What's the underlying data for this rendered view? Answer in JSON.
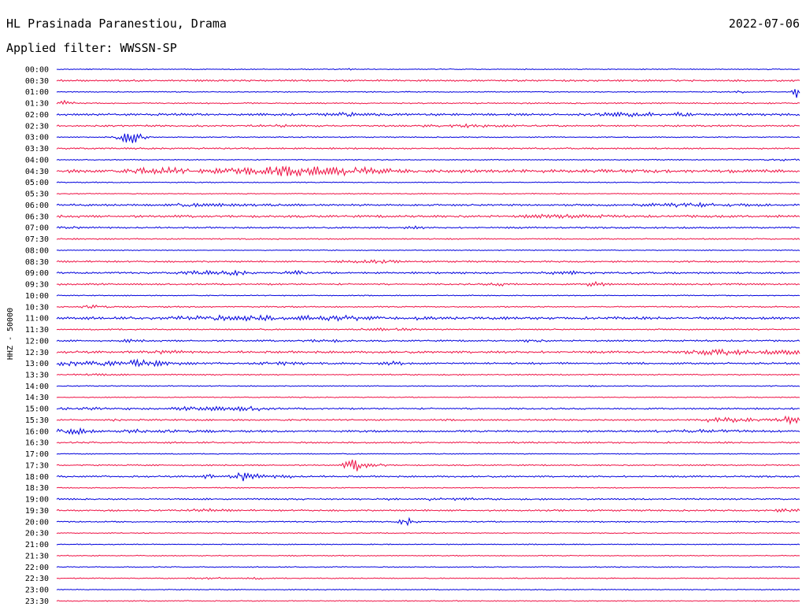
{
  "header": {
    "station": "HL Prasinada Paranestiou, Drama",
    "date": "2022-07-06",
    "filter": "Applied filter: WWSSN-SP"
  },
  "chart_data": {
    "type": "line",
    "title": "HL Prasinada Paranestiou, Drama",
    "subtitle": "Applied filter: WWSSN-SP",
    "date": "2022-07-06",
    "ylabel": "HHZ - 50000",
    "colors": {
      "even_trace": "#0000dd",
      "odd_trace": "#ee1144"
    },
    "traces": [
      {
        "label": "00:00",
        "base": 0.3,
        "events": [
          {
            "t": 0.395,
            "a": 0.4,
            "w": 0.002
          }
        ]
      },
      {
        "label": "00:30",
        "base": 0.55,
        "events": []
      },
      {
        "label": "01:00",
        "base": 0.3,
        "events": [
          {
            "t": 0.92,
            "a": 0.8,
            "w": 0.004
          },
          {
            "t": 0.995,
            "a": 3.5,
            "w": 0.005
          }
        ]
      },
      {
        "label": "01:30",
        "base": 0.4,
        "events": [
          {
            "t": 0.005,
            "a": 1.0,
            "w": 0.012
          }
        ]
      },
      {
        "label": "02:00",
        "base": 0.7,
        "events": [
          {
            "t": 0.39,
            "a": 0.6,
            "w": 0.02
          },
          {
            "t": 0.77,
            "a": 0.8,
            "w": 0.03
          },
          {
            "t": 0.84,
            "a": 0.6,
            "w": 0.01
          }
        ]
      },
      {
        "label": "02:30",
        "base": 0.5,
        "events": [
          {
            "t": 0.29,
            "a": 0.6,
            "w": 0.02
          },
          {
            "t": 0.55,
            "a": 0.5,
            "w": 0.04
          }
        ]
      },
      {
        "label": "03:00",
        "base": 0.3,
        "events": [
          {
            "t": 0.095,
            "a": 3.2,
            "w": 0.015
          }
        ]
      },
      {
        "label": "03:30",
        "base": 0.5,
        "events": []
      },
      {
        "label": "04:00",
        "base": 0.3,
        "events": [
          {
            "t": 0.98,
            "a": 0.4,
            "w": 0.02
          }
        ]
      },
      {
        "label": "04:30",
        "base": 1.0,
        "events": [
          {
            "t": 0.14,
            "a": 1.3,
            "w": 0.03
          },
          {
            "t": 0.24,
            "a": 1.3,
            "w": 0.02
          },
          {
            "t": 0.32,
            "a": 2.0,
            "w": 0.045
          },
          {
            "t": 0.4,
            "a": 1.2,
            "w": 0.03
          }
        ]
      },
      {
        "label": "05:00",
        "base": 0.3,
        "events": []
      },
      {
        "label": "05:30",
        "base": 0.3,
        "events": []
      },
      {
        "label": "06:00",
        "base": 0.6,
        "events": [
          {
            "t": 0.2,
            "a": 0.5,
            "w": 0.05
          },
          {
            "t": 0.85,
            "a": 0.6,
            "w": 0.05
          }
        ]
      },
      {
        "label": "06:30",
        "base": 0.7,
        "events": [
          {
            "t": 0.68,
            "a": 0.6,
            "w": 0.04
          }
        ]
      },
      {
        "label": "07:00",
        "base": 0.5,
        "events": [
          {
            "t": 0.015,
            "a": 0.5,
            "w": 0.01
          },
          {
            "t": 0.48,
            "a": 0.5,
            "w": 0.01
          }
        ]
      },
      {
        "label": "07:30",
        "base": 0.4,
        "events": []
      },
      {
        "label": "08:00",
        "base": 0.3,
        "events": []
      },
      {
        "label": "08:30",
        "base": 0.5,
        "events": [
          {
            "t": 0.42,
            "a": 0.6,
            "w": 0.03
          }
        ]
      },
      {
        "label": "09:00",
        "base": 0.6,
        "events": [
          {
            "t": 0.19,
            "a": 0.8,
            "w": 0.02
          },
          {
            "t": 0.24,
            "a": 1.0,
            "w": 0.012
          },
          {
            "t": 0.32,
            "a": 1.1,
            "w": 0.008
          },
          {
            "t": 0.68,
            "a": 0.6,
            "w": 0.02
          }
        ]
      },
      {
        "label": "09:30",
        "base": 0.5,
        "events": [
          {
            "t": 0.595,
            "a": 0.6,
            "w": 0.015
          },
          {
            "t": 0.725,
            "a": 1.3,
            "w": 0.01
          }
        ]
      },
      {
        "label": "10:00",
        "base": 0.3,
        "events": []
      },
      {
        "label": "10:30",
        "base": 0.4,
        "events": [
          {
            "t": 0.05,
            "a": 1.1,
            "w": 0.012
          }
        ]
      },
      {
        "label": "11:00",
        "base": 0.8,
        "events": [
          {
            "t": 0.2,
            "a": 1.0,
            "w": 0.03
          },
          {
            "t": 0.27,
            "a": 1.2,
            "w": 0.02
          },
          {
            "t": 0.33,
            "a": 1.8,
            "w": 0.006
          },
          {
            "t": 0.39,
            "a": 1.2,
            "w": 0.025
          },
          {
            "t": 0.49,
            "a": 0.8,
            "w": 0.006
          }
        ]
      },
      {
        "label": "11:30",
        "base": 0.4,
        "events": [
          {
            "t": 0.45,
            "a": 0.5,
            "w": 0.03
          }
        ]
      },
      {
        "label": "12:00",
        "base": 0.5,
        "events": [
          {
            "t": 0.1,
            "a": 0.5,
            "w": 0.01
          },
          {
            "t": 0.36,
            "a": 0.5,
            "w": 0.02
          },
          {
            "t": 0.64,
            "a": 0.6,
            "w": 0.01
          }
        ]
      },
      {
        "label": "12:30",
        "base": 0.7,
        "events": [
          {
            "t": 0.14,
            "a": 0.5,
            "w": 0.02
          },
          {
            "t": 0.89,
            "a": 1.1,
            "w": 0.03
          },
          {
            "t": 0.98,
            "a": 0.8,
            "w": 0.02
          }
        ]
      },
      {
        "label": "13:00",
        "base": 0.6,
        "events": [
          {
            "t": 0.02,
            "a": 0.9,
            "w": 0.02
          },
          {
            "t": 0.1,
            "a": 1.3,
            "w": 0.04
          },
          {
            "t": 0.3,
            "a": 0.7,
            "w": 0.02
          },
          {
            "t": 0.45,
            "a": 0.9,
            "w": 0.012
          }
        ]
      },
      {
        "label": "13:30",
        "base": 0.4,
        "events": [
          {
            "t": 0.05,
            "a": 0.4,
            "w": 0.02
          }
        ]
      },
      {
        "label": "14:00",
        "base": 0.3,
        "events": [
          {
            "t": 0.72,
            "a": 0.4,
            "w": 0.003
          }
        ]
      },
      {
        "label": "14:30",
        "base": 0.3,
        "events": []
      },
      {
        "label": "15:00",
        "base": 0.5,
        "events": [
          {
            "t": 0.05,
            "a": 0.6,
            "w": 0.03
          },
          {
            "t": 0.2,
            "a": 0.9,
            "w": 0.03
          },
          {
            "t": 0.26,
            "a": 0.8,
            "w": 0.02
          }
        ]
      },
      {
        "label": "15:30",
        "base": 0.5,
        "events": [
          {
            "t": 0.07,
            "a": 0.5,
            "w": 0.01
          },
          {
            "t": 0.9,
            "a": 1.1,
            "w": 0.03
          },
          {
            "t": 0.985,
            "a": 1.8,
            "w": 0.012
          }
        ]
      },
      {
        "label": "16:00",
        "base": 0.6,
        "events": [
          {
            "t": 0.02,
            "a": 1.3,
            "w": 0.02
          },
          {
            "t": 0.1,
            "a": 1.2,
            "w": 0.006
          },
          {
            "t": 0.15,
            "a": 0.5,
            "w": 0.03
          },
          {
            "t": 0.85,
            "a": 0.5,
            "w": 0.05
          }
        ]
      },
      {
        "label": "16:30",
        "base": 0.5,
        "events": []
      },
      {
        "label": "17:00",
        "base": 0.3,
        "events": []
      },
      {
        "label": "17:30",
        "base": 0.4,
        "events": [
          {
            "t": 0.4,
            "a": 3.0,
            "w": 0.01
          },
          {
            "t": 0.43,
            "a": 0.7,
            "w": 0.01
          }
        ]
      },
      {
        "label": "18:00",
        "base": 0.5,
        "events": [
          {
            "t": 0.2,
            "a": 0.9,
            "w": 0.01
          },
          {
            "t": 0.25,
            "a": 2.2,
            "w": 0.014
          },
          {
            "t": 0.3,
            "a": 0.5,
            "w": 0.02
          }
        ]
      },
      {
        "label": "18:30",
        "base": 0.3,
        "events": []
      },
      {
        "label": "19:00",
        "base": 0.5,
        "events": [
          {
            "t": 0.44,
            "a": 0.6,
            "w": 0.01
          },
          {
            "t": 0.52,
            "a": 0.6,
            "w": 0.03
          }
        ]
      },
      {
        "label": "19:30",
        "base": 0.5,
        "events": [
          {
            "t": 0.2,
            "a": 0.5,
            "w": 0.02
          },
          {
            "t": 0.98,
            "a": 0.5,
            "w": 0.02
          }
        ]
      },
      {
        "label": "20:00",
        "base": 0.4,
        "events": [
          {
            "t": 0.47,
            "a": 1.8,
            "w": 0.008
          }
        ]
      },
      {
        "label": "20:30",
        "base": 0.3,
        "events": []
      },
      {
        "label": "21:00",
        "base": 0.3,
        "events": []
      },
      {
        "label": "21:30",
        "base": 0.3,
        "events": []
      },
      {
        "label": "22:00",
        "base": 0.3,
        "events": []
      },
      {
        "label": "22:30",
        "base": 0.3,
        "events": [
          {
            "t": 0.2,
            "a": 0.4,
            "w": 0.02
          },
          {
            "t": 0.27,
            "a": 0.4,
            "w": 0.01
          }
        ]
      },
      {
        "label": "23:00",
        "base": 0.3,
        "events": []
      },
      {
        "label": "23:30",
        "base": 0.3,
        "events": []
      }
    ]
  }
}
